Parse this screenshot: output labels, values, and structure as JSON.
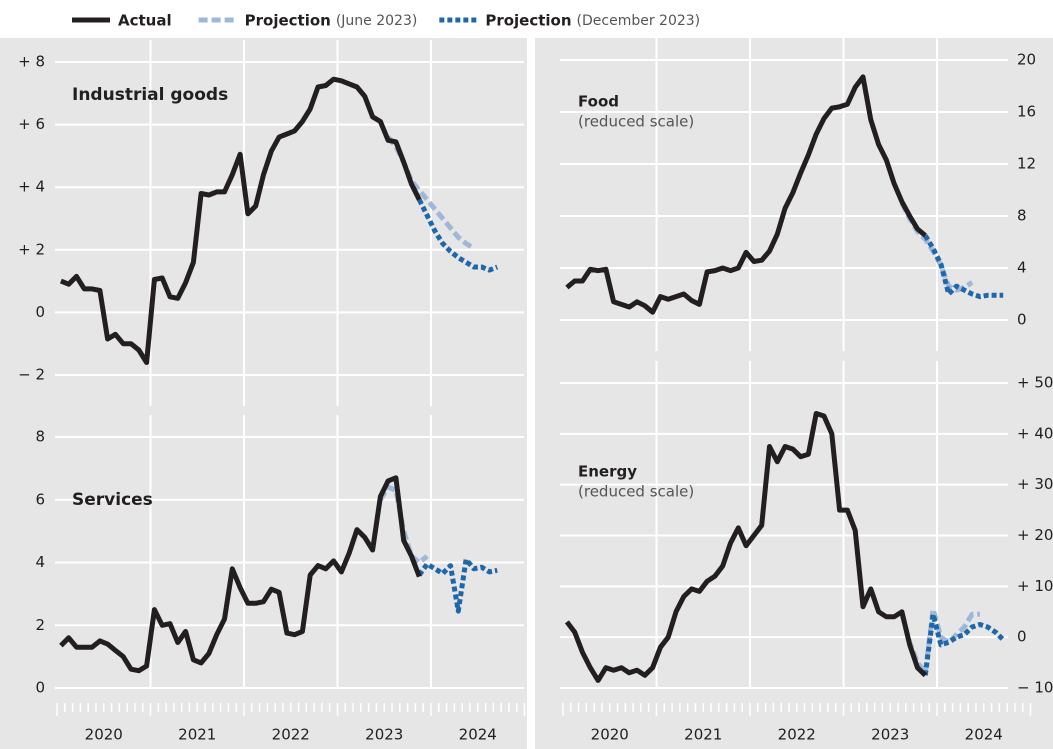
{
  "chart_data": [
    {
      "type": "line",
      "title": "Industrial goods",
      "ylim": [
        -2,
        8
      ],
      "yticks": [
        {
          "value": -2,
          "label": "− 2"
        },
        0,
        {
          "value": 2,
          "label": "+ 2"
        },
        {
          "value": 4,
          "label": "+ 4"
        },
        {
          "value": 6,
          "label": "+ 6"
        },
        {
          "value": 8,
          "label": "+ 8"
        }
      ],
      "series": [
        {
          "name": "Actual",
          "color": "#231f20",
          "style": "solid",
          "values": [
            1.0,
            0.9,
            1.15,
            0.75,
            0.75,
            0.7,
            -0.85,
            -0.7,
            -1.0,
            -1.0,
            -1.2,
            -1.6,
            1.05,
            1.1,
            0.5,
            0.45,
            0.95,
            1.6,
            3.8,
            3.75,
            3.85,
            3.85,
            4.4,
            5.05,
            3.15,
            3.4,
            4.4,
            5.15,
            5.6,
            5.7,
            5.8,
            6.1,
            6.5,
            7.2,
            7.25,
            7.45,
            7.4,
            7.3,
            7.2,
            6.9,
            6.25,
            6.1,
            5.5,
            5.45,
            4.8,
            4.1,
            3.6,
            null,
            null,
            null,
            null,
            null,
            null,
            null,
            null,
            null,
            null,
            null,
            null,
            null
          ]
        },
        {
          "name": "Projection",
          "detail": "(June 2023)",
          "color": "#9fb8d8",
          "style": "dashed",
          "values": [
            null,
            null,
            null,
            null,
            null,
            null,
            null,
            null,
            null,
            null,
            null,
            null,
            null,
            null,
            null,
            null,
            null,
            null,
            null,
            null,
            null,
            null,
            null,
            null,
            null,
            null,
            null,
            null,
            null,
            null,
            null,
            null,
            null,
            null,
            null,
            null,
            null,
            null,
            null,
            null,
            null,
            null,
            5.6,
            5.3,
            4.8,
            4.2,
            3.9,
            3.6,
            3.3,
            3.0,
            2.7,
            2.4,
            2.2,
            2.05,
            null,
            null,
            null,
            null,
            null,
            null
          ]
        },
        {
          "name": "Projection",
          "detail": "(December 2023)",
          "color": "#1f67a8",
          "style": "dotted",
          "values": [
            null,
            null,
            null,
            null,
            null,
            null,
            null,
            null,
            null,
            null,
            null,
            null,
            null,
            null,
            null,
            null,
            null,
            null,
            null,
            null,
            null,
            null,
            null,
            null,
            null,
            null,
            null,
            null,
            null,
            null,
            null,
            null,
            null,
            null,
            null,
            null,
            null,
            null,
            null,
            null,
            null,
            null,
            null,
            null,
            null,
            null,
            3.6,
            3.1,
            2.6,
            2.2,
            1.95,
            1.75,
            1.6,
            1.45,
            1.45,
            1.35,
            1.45,
            null,
            null,
            null
          ]
        }
      ]
    },
    {
      "type": "line",
      "title": "Services",
      "categories": [
        null,
        null,
        null,
        null,
        null,
        null,
        "2020",
        null,
        null,
        null,
        null,
        null,
        null,
        null,
        null,
        null,
        null,
        null,
        "2021",
        null,
        null,
        null,
        null,
        null,
        null,
        null,
        null,
        null,
        null,
        null,
        "2022",
        null,
        null,
        null,
        null,
        null,
        null,
        null,
        null,
        null,
        null,
        null,
        "2023",
        null,
        null,
        null,
        null,
        null,
        null,
        null,
        null,
        null,
        null,
        null,
        "2024",
        null,
        null,
        null,
        null,
        null
      ],
      "ylim": [
        0,
        8
      ],
      "yticks": [
        0,
        2,
        4,
        6,
        8
      ],
      "series": [
        {
          "name": "Actual",
          "color": "#231f20",
          "style": "solid",
          "values": [
            1.35,
            1.6,
            1.3,
            1.3,
            1.3,
            1.5,
            1.4,
            1.2,
            1.0,
            0.6,
            0.55,
            0.7,
            2.5,
            2.0,
            2.05,
            1.45,
            1.8,
            0.9,
            0.8,
            1.1,
            1.7,
            2.2,
            3.8,
            3.2,
            2.7,
            2.7,
            2.75,
            3.15,
            3.05,
            1.75,
            1.7,
            1.8,
            3.6,
            3.9,
            3.8,
            4.05,
            3.7,
            4.3,
            5.05,
            4.8,
            4.4,
            6.1,
            6.6,
            6.7,
            4.7,
            4.2,
            3.55,
            null,
            null,
            null,
            null,
            null,
            null,
            null,
            null,
            null,
            null,
            null,
            null,
            null
          ]
        },
        {
          "name": "Projection",
          "detail": "(June 2023)",
          "color": "#9fb8d8",
          "style": "dashed",
          "values": [
            null,
            null,
            null,
            null,
            null,
            null,
            null,
            null,
            null,
            null,
            null,
            null,
            null,
            null,
            null,
            null,
            null,
            null,
            null,
            null,
            null,
            null,
            null,
            null,
            null,
            null,
            null,
            null,
            null,
            null,
            null,
            null,
            null,
            null,
            null,
            null,
            null,
            null,
            null,
            null,
            null,
            6.0,
            6.4,
            6.3,
            5.0,
            4.2,
            4.0,
            4.2,
            null,
            null,
            null,
            null,
            null,
            null,
            null,
            null,
            null,
            null,
            null,
            null
          ]
        },
        {
          "name": "Projection",
          "detail": "(December 2023)",
          "color": "#1f67a8",
          "style": "dotted",
          "values": [
            null,
            null,
            null,
            null,
            null,
            null,
            null,
            null,
            null,
            null,
            null,
            null,
            null,
            null,
            null,
            null,
            null,
            null,
            null,
            null,
            null,
            null,
            null,
            null,
            null,
            null,
            null,
            null,
            null,
            null,
            null,
            null,
            null,
            null,
            null,
            null,
            null,
            null,
            null,
            null,
            null,
            null,
            null,
            null,
            null,
            null,
            3.6,
            3.95,
            3.8,
            3.65,
            3.9,
            2.45,
            4.1,
            3.8,
            3.85,
            3.7,
            3.75,
            null,
            null,
            null
          ]
        }
      ]
    },
    {
      "type": "line",
      "title": "Food",
      "subtitle": "(reduced scale)",
      "ylim": [
        0,
        20
      ],
      "yticks": [
        0,
        4,
        8,
        12,
        16,
        20
      ],
      "series": [
        {
          "name": "Actual",
          "color": "#231f20",
          "style": "solid",
          "values": [
            2.5,
            3.0,
            3.0,
            3.9,
            3.8,
            3.9,
            1.4,
            1.2,
            1.0,
            1.4,
            1.1,
            0.6,
            1.8,
            1.6,
            1.8,
            2.0,
            1.5,
            1.2,
            3.7,
            3.8,
            4.0,
            3.8,
            4.0,
            5.2,
            4.5,
            4.6,
            5.3,
            6.6,
            8.6,
            9.8,
            11.3,
            12.7,
            14.3,
            15.5,
            16.3,
            16.4,
            16.6,
            17.9,
            18.7,
            15.4,
            13.5,
            12.3,
            10.5,
            9.1,
            8.0,
            7.0,
            6.5,
            null,
            null,
            null,
            null,
            null,
            null,
            null,
            null,
            null,
            null,
            null,
            null,
            null
          ]
        },
        {
          "name": "Projection",
          "detail": "(June 2023)",
          "color": "#9fb8d8",
          "style": "dashed",
          "values": [
            null,
            null,
            null,
            null,
            null,
            null,
            null,
            null,
            null,
            null,
            null,
            null,
            null,
            null,
            null,
            null,
            null,
            null,
            null,
            null,
            null,
            null,
            null,
            null,
            null,
            null,
            null,
            null,
            null,
            null,
            null,
            null,
            null,
            null,
            null,
            null,
            null,
            null,
            null,
            null,
            null,
            null,
            null,
            9.0,
            7.8,
            6.8,
            6.2,
            5.3,
            4.2,
            2.6,
            2.3,
            2.5,
            2.9,
            null,
            null,
            null,
            null,
            null,
            null,
            null
          ]
        },
        {
          "name": "Projection",
          "detail": "(December 2023)",
          "color": "#1f67a8",
          "style": "dotted",
          "values": [
            null,
            null,
            null,
            null,
            null,
            null,
            null,
            null,
            null,
            null,
            null,
            null,
            null,
            null,
            null,
            null,
            null,
            null,
            null,
            null,
            null,
            null,
            null,
            null,
            null,
            null,
            null,
            null,
            null,
            null,
            null,
            null,
            null,
            null,
            null,
            null,
            null,
            null,
            null,
            null,
            null,
            null,
            null,
            null,
            null,
            null,
            6.5,
            5.5,
            4.3,
            2.0,
            2.6,
            2.3,
            2.0,
            1.8,
            1.9,
            1.9,
            1.9,
            null,
            null,
            null
          ]
        }
      ]
    },
    {
      "type": "line",
      "title": "Energy",
      "subtitle": "(reduced scale)",
      "categories": [
        null,
        null,
        null,
        null,
        null,
        null,
        "2020",
        null,
        null,
        null,
        null,
        null,
        null,
        null,
        null,
        null,
        null,
        null,
        "2021",
        null,
        null,
        null,
        null,
        null,
        null,
        null,
        null,
        null,
        null,
        null,
        "2022",
        null,
        null,
        null,
        null,
        null,
        null,
        null,
        null,
        null,
        null,
        null,
        "2023",
        null,
        null,
        null,
        null,
        null,
        null,
        null,
        null,
        null,
        null,
        null,
        "2024",
        null,
        null,
        null,
        null,
        null
      ],
      "ylim": [
        -10,
        50
      ],
      "yticks": [
        {
          "value": -10,
          "label": "− 10"
        },
        0,
        {
          "value": 10,
          "label": "+ 10"
        },
        {
          "value": 20,
          "label": "+ 20"
        },
        {
          "value": 30,
          "label": "+ 30"
        },
        {
          "value": 40,
          "label": "+ 40"
        },
        {
          "value": 50,
          "label": "+ 50"
        }
      ],
      "series": [
        {
          "name": "Actual",
          "color": "#231f20",
          "style": "solid",
          "values": [
            3,
            1,
            -3,
            -6,
            -8.5,
            -6,
            -6.5,
            -6,
            -7,
            -6.5,
            -7.5,
            -6,
            -2,
            0,
            5,
            8,
            9.5,
            9,
            11,
            12,
            14,
            18.5,
            21.5,
            18,
            20,
            22,
            37.5,
            34.5,
            37.5,
            37,
            35.5,
            36,
            44,
            43.5,
            40,
            25,
            25,
            21,
            6,
            9.5,
            5,
            4,
            4,
            5,
            -1.5,
            -6,
            -7.5,
            null,
            null,
            null,
            null,
            null,
            null,
            null,
            null,
            null,
            null,
            null,
            null,
            null
          ]
        },
        {
          "name": "Projection",
          "detail": "(June 2023)",
          "color": "#9fb8d8",
          "style": "dashed",
          "values": [
            null,
            null,
            null,
            null,
            null,
            null,
            null,
            null,
            null,
            null,
            null,
            null,
            null,
            null,
            null,
            null,
            null,
            null,
            null,
            null,
            null,
            null,
            null,
            null,
            null,
            null,
            null,
            null,
            null,
            null,
            null,
            null,
            null,
            null,
            null,
            null,
            null,
            null,
            null,
            null,
            null,
            null,
            null,
            4.5,
            -1,
            -5,
            -7,
            5.5,
            0,
            -1,
            0.5,
            2,
            4.5,
            4.5,
            null,
            null,
            null,
            null,
            null,
            null
          ]
        },
        {
          "name": "Projection",
          "detail": "(December 2023)",
          "color": "#1f67a8",
          "style": "dotted",
          "values": [
            null,
            null,
            null,
            null,
            null,
            null,
            null,
            null,
            null,
            null,
            null,
            null,
            null,
            null,
            null,
            null,
            null,
            null,
            null,
            null,
            null,
            null,
            null,
            null,
            null,
            null,
            null,
            null,
            null,
            null,
            null,
            null,
            null,
            null,
            null,
            null,
            null,
            null,
            null,
            null,
            null,
            null,
            null,
            null,
            null,
            null,
            -7.5,
            4.5,
            -1.5,
            -1,
            0,
            0.5,
            2,
            2.5,
            2,
            1,
            -0.5,
            null,
            null,
            null
          ]
        }
      ]
    }
  ]
}
